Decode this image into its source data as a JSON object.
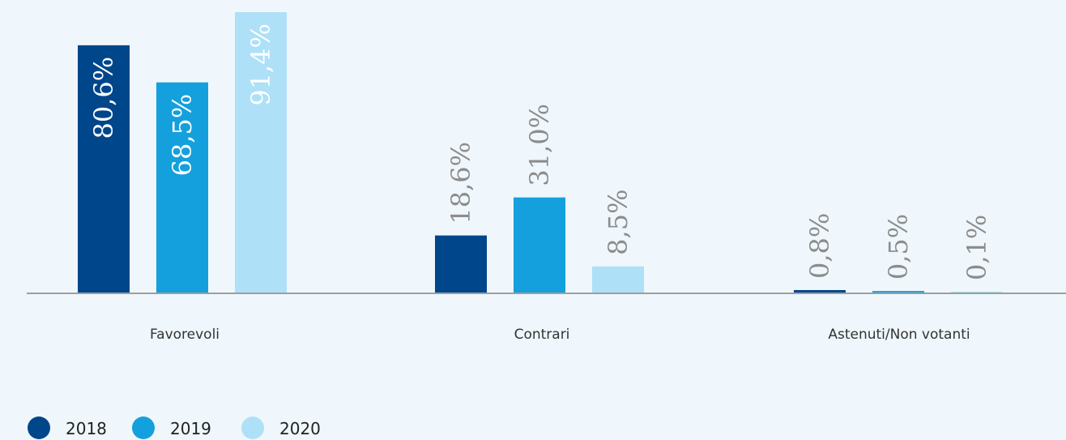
{
  "chart_data": {
    "type": "bar",
    "categories": [
      "Favorevoli",
      "Contrari",
      "Astenuti/Non votanti"
    ],
    "series": [
      {
        "name": "2018",
        "values": [
          80.6,
          18.6,
          0.8
        ],
        "labels": [
          "80,6%",
          "18,6%",
          "0,8%"
        ],
        "color": "#00468b"
      },
      {
        "name": "2019",
        "values": [
          68.5,
          31.0,
          0.5
        ],
        "labels": [
          "68,5%",
          "31,0%",
          "0,5%"
        ],
        "color": "#14a0dc"
      },
      {
        "name": "2020",
        "values": [
          91.4,
          8.5,
          0.1
        ],
        "labels": [
          "91,4%",
          "8,5%",
          "0,1%"
        ],
        "color": "#aee0f8"
      }
    ],
    "ylim": [
      0,
      91.4
    ],
    "grid": false,
    "legend_position": "bottom-left",
    "label_color_inside": "#ffffff",
    "label_color_outside": "#8c8c8c",
    "axis_color": "#9e9e9e"
  }
}
